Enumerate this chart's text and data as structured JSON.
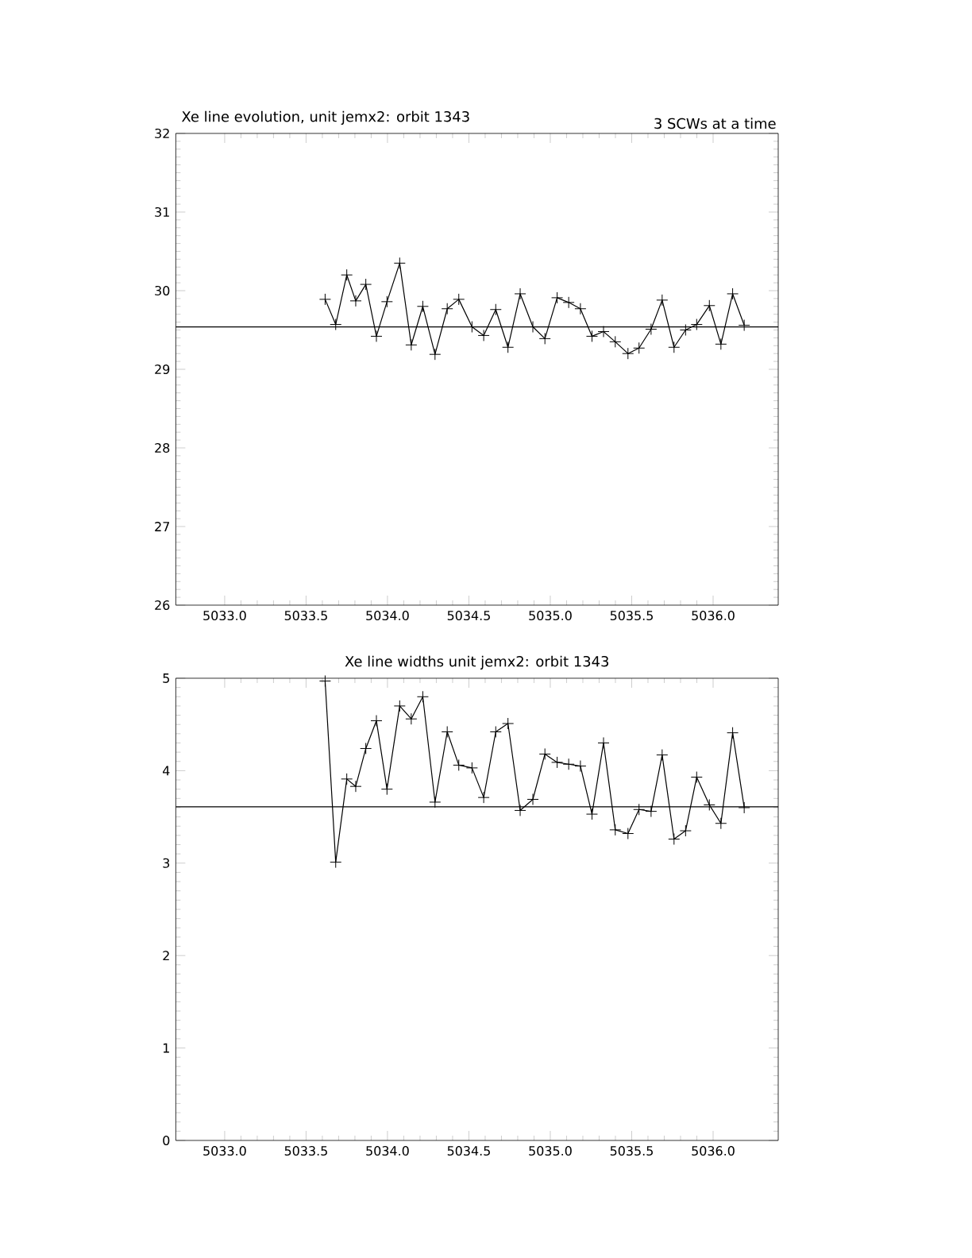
{
  "chart_data": [
    {
      "type": "line",
      "title": "Xe line evolution, unit jemx2: orbit 1343",
      "annotations": [
        "3 SCWs at a time"
      ],
      "x": [
        5033.617,
        5033.682,
        5033.75,
        5033.805,
        5033.867,
        5033.932,
        5033.997,
        5034.075,
        5034.146,
        5034.217,
        5034.292,
        5034.367,
        5034.438,
        5034.519,
        5034.591,
        5034.665,
        5034.74,
        5034.815,
        5034.893,
        5034.967,
        5035.042,
        5035.113,
        5035.185,
        5035.256,
        5035.327,
        5035.399,
        5035.477,
        5035.545,
        5035.619,
        5035.687,
        5035.76,
        5035.831,
        5035.899,
        5035.977,
        5036.048,
        5036.12,
        5036.191
      ],
      "series": [
        {
          "color": "#000000",
          "values": [
            29.89,
            29.57,
            30.2,
            29.87,
            30.08,
            29.42,
            29.86,
            30.35,
            29.31,
            29.8,
            29.19,
            29.77,
            29.89,
            29.54,
            29.43,
            29.76,
            29.28,
            29.96,
            29.54,
            29.39,
            29.91,
            29.85,
            29.77,
            29.42,
            29.48,
            29.35,
            29.2,
            29.27,
            29.51,
            29.88,
            29.28,
            29.5,
            29.57,
            29.81,
            29.32,
            29.96,
            29.56
          ]
        }
      ],
      "xlim": [
        5032.7,
        5036.4
      ],
      "ylim": [
        26,
        32
      ],
      "xticks": [
        {
          "value": 5033,
          "label": "5033.0"
        },
        {
          "value": 5033.5,
          "label": "5033.5"
        },
        {
          "value": 5034,
          "label": "5034.0"
        },
        {
          "value": 5034.5,
          "label": "5034.5"
        },
        {
          "value": 5035,
          "label": "5035.0"
        },
        {
          "value": 5035.5,
          "label": "5035.5"
        },
        {
          "value": 5036,
          "label": "5036.0"
        }
      ],
      "yticks": [
        26,
        27,
        28,
        29,
        30,
        31,
        32
      ],
      "ref_lines": [
        {
          "axis": "y",
          "value": 29.54
        }
      ],
      "marker": "cross",
      "line_style": "solid"
    },
    {
      "type": "line",
      "title": "Xe line widths unit jemx2: orbit 1343",
      "x": [
        5033.617,
        5033.682,
        5033.75,
        5033.805,
        5033.867,
        5033.932,
        5033.997,
        5034.075,
        5034.146,
        5034.217,
        5034.292,
        5034.367,
        5034.438,
        5034.519,
        5034.591,
        5034.665,
        5034.74,
        5034.815,
        5034.893,
        5034.967,
        5035.042,
        5035.113,
        5035.185,
        5035.256,
        5035.327,
        5035.399,
        5035.477,
        5035.545,
        5035.619,
        5035.687,
        5035.76,
        5035.831,
        5035.899,
        5035.977,
        5036.048,
        5036.12,
        5036.191
      ],
      "series": [
        {
          "color": "#000000",
          "values": [
            4.97,
            3.01,
            3.91,
            3.83,
            4.24,
            4.54,
            3.8,
            4.7,
            4.56,
            4.8,
            3.66,
            4.42,
            4.06,
            4.03,
            3.71,
            4.42,
            4.51,
            3.57,
            3.69,
            4.18,
            4.09,
            4.07,
            4.05,
            3.53,
            4.3,
            3.36,
            3.32,
            3.58,
            3.56,
            4.17,
            3.26,
            3.35,
            3.93,
            3.63,
            3.43,
            4.41,
            3.6
          ]
        }
      ],
      "xlim": [
        5032.7,
        5036.4
      ],
      "ylim": [
        0,
        5
      ],
      "xticks": [
        {
          "value": 5033,
          "label": "5033.0"
        },
        {
          "value": 5033.5,
          "label": "5033.5"
        },
        {
          "value": 5034,
          "label": "5034.0"
        },
        {
          "value": 5034.5,
          "label": "5034.5"
        },
        {
          "value": 5035,
          "label": "5035.0"
        },
        {
          "value": 5035.5,
          "label": "5035.5"
        },
        {
          "value": 5036,
          "label": "5036.0"
        }
      ],
      "yticks": [
        0,
        1,
        2,
        3,
        4,
        5
      ],
      "ref_lines": [
        {
          "axis": "y",
          "value": 3.61
        }
      ],
      "marker": "cross",
      "line_style": "solid"
    }
  ]
}
